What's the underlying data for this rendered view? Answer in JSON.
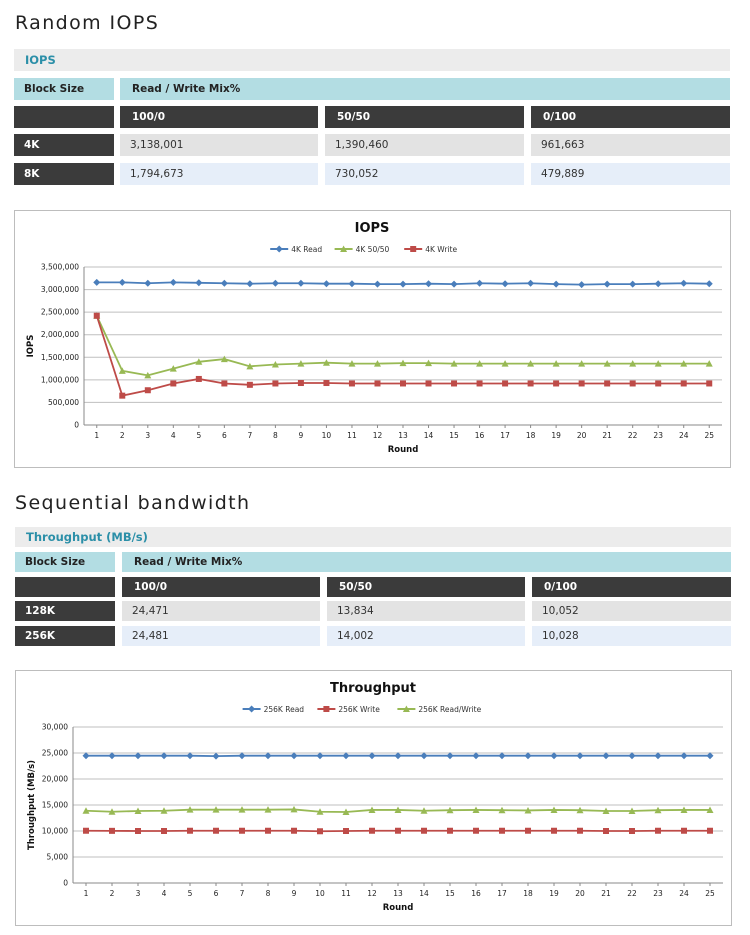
{
  "sections": [
    {
      "title": "Random IOPS",
      "band_label": "IOPS",
      "block_size_label": "Block Size",
      "mix_label": "Read / Write Mix%",
      "columns": [
        "100/0",
        "50/50",
        "0/100"
      ],
      "rows": [
        {
          "label": "4K",
          "values": [
            "3,138,001",
            "1,390,460",
            "961,663"
          ]
        },
        {
          "label": "8K",
          "values": [
            "1,794,673",
            "730,052",
            "479,889"
          ]
        }
      ]
    },
    {
      "title": "Sequential bandwidth",
      "band_label": "Throughput (MB/s)",
      "block_size_label": "Block Size",
      "mix_label": "Read / Write Mix%",
      "columns": [
        "100/0",
        "50/50",
        "0/100"
      ],
      "rows": [
        {
          "label": "128K",
          "values": [
            "24,471",
            "13,834",
            "10,052"
          ]
        },
        {
          "label": "256K",
          "values": [
            "24,481",
            "14,002",
            "10,028"
          ]
        }
      ]
    }
  ],
  "chart_data": [
    {
      "type": "line",
      "title": "IOPS",
      "xlabel": "Round",
      "ylabel": "IOPS",
      "ylim": [
        0,
        3500000
      ],
      "yticks": [
        0,
        500000,
        1000000,
        1500000,
        2000000,
        2500000,
        3000000,
        3500000
      ],
      "ytick_labels": [
        "0",
        "500,000",
        "1,000,000",
        "1,500,000",
        "2,000,000",
        "2,500,000",
        "3,000,000",
        "3,500,000"
      ],
      "x": [
        1,
        2,
        3,
        4,
        5,
        6,
        7,
        8,
        9,
        10,
        11,
        12,
        13,
        14,
        15,
        16,
        17,
        18,
        19,
        20,
        21,
        22,
        23,
        24,
        25
      ],
      "grid": true,
      "legend": "top",
      "series": [
        {
          "name": "4K Read",
          "color": "#4a7ebb",
          "marker": "diamond",
          "values": [
            3160000,
            3160000,
            3140000,
            3160000,
            3150000,
            3140000,
            3130000,
            3140000,
            3140000,
            3130000,
            3130000,
            3120000,
            3120000,
            3130000,
            3120000,
            3140000,
            3130000,
            3140000,
            3120000,
            3110000,
            3120000,
            3120000,
            3130000,
            3140000,
            3130000
          ]
        },
        {
          "name": "4K 50/50",
          "color": "#98b954",
          "marker": "triangle",
          "values": [
            2420000,
            1200000,
            1100000,
            1250000,
            1400000,
            1460000,
            1300000,
            1340000,
            1360000,
            1380000,
            1360000,
            1360000,
            1370000,
            1370000,
            1360000,
            1360000,
            1360000,
            1360000,
            1360000,
            1360000,
            1360000,
            1360000,
            1360000,
            1360000,
            1360000
          ]
        },
        {
          "name": "4K Write",
          "color": "#be4b48",
          "marker": "square",
          "values": [
            2420000,
            650000,
            770000,
            920000,
            1020000,
            920000,
            890000,
            920000,
            930000,
            930000,
            920000,
            920000,
            920000,
            920000,
            920000,
            920000,
            920000,
            920000,
            920000,
            920000,
            920000,
            920000,
            920000,
            920000,
            920000
          ]
        }
      ]
    },
    {
      "type": "line",
      "title": "Throughput",
      "xlabel": "Round",
      "ylabel": "Throughput (MB/s)",
      "ylim": [
        0,
        30000
      ],
      "yticks": [
        0,
        5000,
        10000,
        15000,
        20000,
        25000,
        30000
      ],
      "ytick_labels": [
        "0",
        "5,000",
        "10,000",
        "15,000",
        "20,000",
        "25,000",
        "30,000"
      ],
      "x": [
        1,
        2,
        3,
        4,
        5,
        6,
        7,
        8,
        9,
        10,
        11,
        12,
        13,
        14,
        15,
        16,
        17,
        18,
        19,
        20,
        21,
        22,
        23,
        24,
        25
      ],
      "grid": true,
      "legend": "top",
      "series": [
        {
          "name": "256K Read",
          "color": "#4a7ebb",
          "marker": "diamond",
          "values": [
            24480,
            24480,
            24480,
            24480,
            24480,
            24400,
            24480,
            24480,
            24480,
            24480,
            24480,
            24480,
            24480,
            24480,
            24480,
            24480,
            24480,
            24480,
            24480,
            24480,
            24480,
            24480,
            24480,
            24480,
            24480
          ]
        },
        {
          "name": "256K Write",
          "color": "#be4b48",
          "marker": "square",
          "values": [
            10050,
            10030,
            10000,
            10000,
            10050,
            10050,
            10050,
            10050,
            10050,
            9950,
            10000,
            10050,
            10050,
            10050,
            10050,
            10050,
            10050,
            10050,
            10050,
            10050,
            10000,
            10000,
            10050,
            10050,
            10050
          ]
        },
        {
          "name": "256K Read/Write",
          "color": "#98b954",
          "marker": "triangle",
          "values": [
            13900,
            13700,
            13850,
            13900,
            14100,
            14100,
            14100,
            14100,
            14150,
            13700,
            13650,
            14050,
            14050,
            13900,
            14000,
            14050,
            14000,
            13950,
            14050,
            14000,
            13850,
            13850,
            14000,
            14050,
            14050
          ]
        }
      ]
    }
  ]
}
